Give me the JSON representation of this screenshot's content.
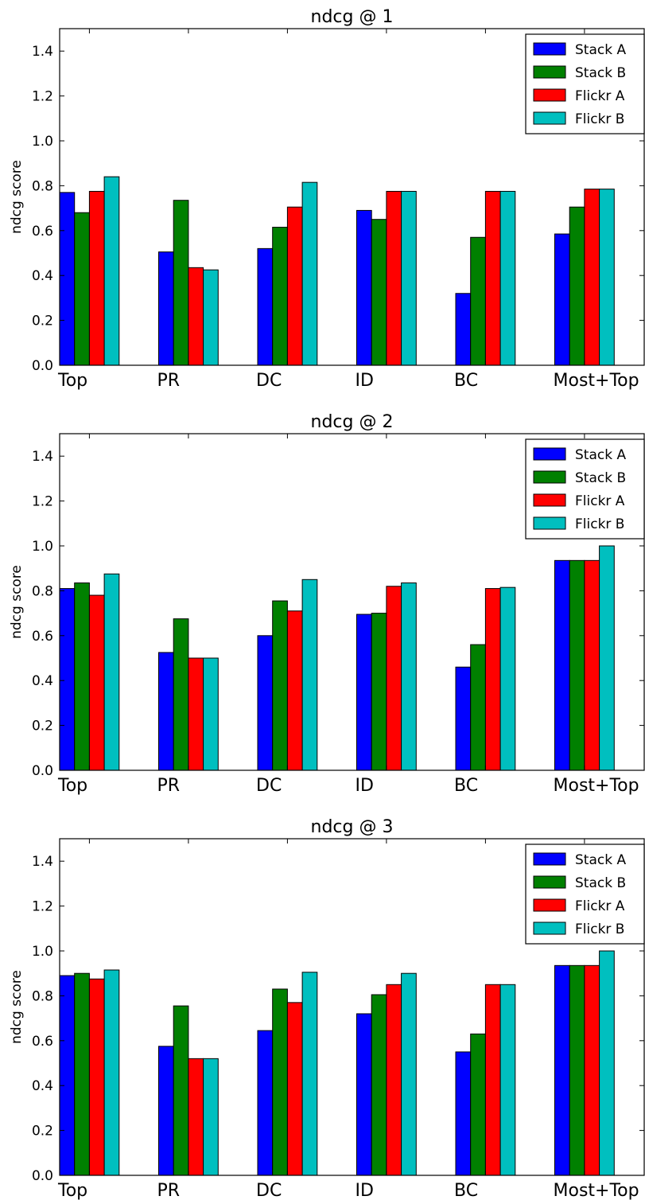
{
  "chart_data": [
    {
      "type": "bar",
      "title": "ndcg @ 1",
      "xlabel": "",
      "ylabel": "ndcg score",
      "ylim": [
        0,
        1.5
      ],
      "yticks": [
        "0.0",
        "0.2",
        "0.4",
        "0.6",
        "0.8",
        "1.0",
        "1.2",
        "1.4"
      ],
      "categories": [
        "Top",
        "PR",
        "DC",
        "ID",
        "BC",
        "Most+Top"
      ],
      "legend": "top-right",
      "series": [
        {
          "name": "Stack A",
          "color": "#0000ff",
          "values": [
            0.77,
            0.505,
            0.52,
            0.69,
            0.32,
            0.585
          ]
        },
        {
          "name": "Stack B",
          "color": "#008000",
          "values": [
            0.68,
            0.735,
            0.615,
            0.65,
            0.57,
            0.705
          ]
        },
        {
          "name": "Flickr A",
          "color": "#ff0000",
          "values": [
            0.775,
            0.435,
            0.705,
            0.775,
            0.775,
            0.785
          ]
        },
        {
          "name": "Flickr B",
          "color": "#00bfbf",
          "values": [
            0.84,
            0.425,
            0.815,
            0.775,
            0.775,
            0.785
          ]
        }
      ]
    },
    {
      "type": "bar",
      "title": "ndcg @ 2",
      "xlabel": "",
      "ylabel": "ndcg score",
      "ylim": [
        0,
        1.5
      ],
      "yticks": [
        "0.0",
        "0.2",
        "0.4",
        "0.6",
        "0.8",
        "1.0",
        "1.2",
        "1.4"
      ],
      "categories": [
        "Top",
        "PR",
        "DC",
        "ID",
        "BC",
        "Most+Top"
      ],
      "legend": "top-right",
      "series": [
        {
          "name": "Stack A",
          "color": "#0000ff",
          "values": [
            0.81,
            0.525,
            0.6,
            0.695,
            0.46,
            0.935
          ]
        },
        {
          "name": "Stack B",
          "color": "#008000",
          "values": [
            0.835,
            0.675,
            0.755,
            0.7,
            0.56,
            0.935
          ]
        },
        {
          "name": "Flickr A",
          "color": "#ff0000",
          "values": [
            0.78,
            0.5,
            0.71,
            0.82,
            0.81,
            0.935
          ]
        },
        {
          "name": "Flickr B",
          "color": "#00bfbf",
          "values": [
            0.875,
            0.5,
            0.85,
            0.835,
            0.815,
            1.0
          ]
        }
      ]
    },
    {
      "type": "bar",
      "title": "ndcg @ 3",
      "xlabel": "",
      "ylabel": "ndcg score",
      "ylim": [
        0,
        1.5
      ],
      "yticks": [
        "0.0",
        "0.2",
        "0.4",
        "0.6",
        "0.8",
        "1.0",
        "1.2",
        "1.4"
      ],
      "categories": [
        "Top",
        "PR",
        "DC",
        "ID",
        "BC",
        "Most+Top"
      ],
      "legend": "top-right",
      "series": [
        {
          "name": "Stack A",
          "color": "#0000ff",
          "values": [
            0.89,
            0.575,
            0.645,
            0.72,
            0.55,
            0.935
          ]
        },
        {
          "name": "Stack B",
          "color": "#008000",
          "values": [
            0.9,
            0.755,
            0.83,
            0.805,
            0.63,
            0.935
          ]
        },
        {
          "name": "Flickr A",
          "color": "#ff0000",
          "values": [
            0.875,
            0.52,
            0.77,
            0.85,
            0.85,
            0.935
          ]
        },
        {
          "name": "Flickr B",
          "color": "#00bfbf",
          "values": [
            0.915,
            0.52,
            0.905,
            0.9,
            0.85,
            1.0
          ]
        }
      ]
    }
  ]
}
